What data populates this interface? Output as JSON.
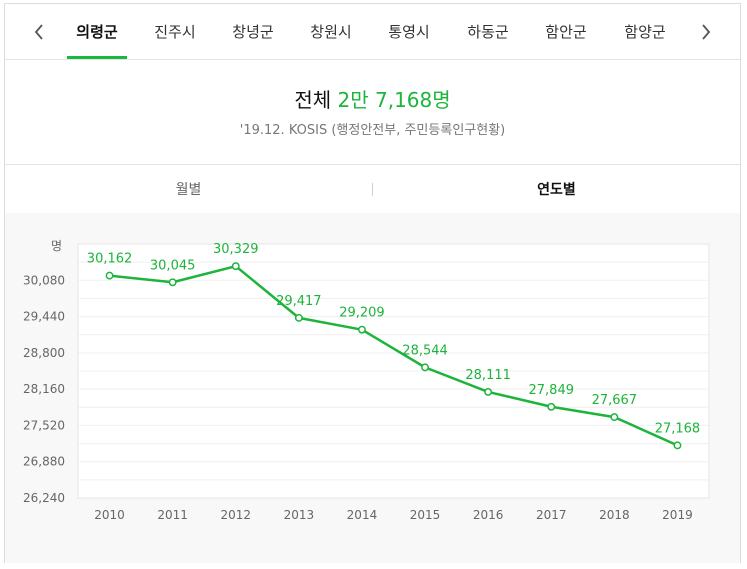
{
  "tabs": {
    "items": [
      "의령군",
      "진주시",
      "창녕군",
      "창원시",
      "통영시",
      "하동군",
      "함안군",
      "함양군"
    ],
    "active": "의령군"
  },
  "summary": {
    "label": "전체",
    "value": "2만 7,168명",
    "source": "'19.12. KOSIS (행정안전부, 주민등록인구현황)"
  },
  "period_toggle": {
    "monthly": "월별",
    "yearly": "연도별",
    "selected": "연도별"
  },
  "colors": {
    "accent": "#19b93d",
    "line": "#1db43c"
  },
  "icons": {
    "prev": "chevron-left-icon",
    "next": "chevron-right-icon"
  },
  "chart_data": {
    "type": "line",
    "unit": "명",
    "x": [
      "2010",
      "2011",
      "2012",
      "2013",
      "2014",
      "2015",
      "2016",
      "2017",
      "2018",
      "2019"
    ],
    "y_ticks": [
      26240,
      26880,
      27520,
      28160,
      28800,
      29440,
      30080
    ],
    "y_tick_labels": [
      "26,240",
      "26,880",
      "27,520",
      "28,160",
      "28,800",
      "29,440",
      "30,080"
    ],
    "ylim": [
      26240,
      30720
    ],
    "series": [
      {
        "values": [
          30162,
          30045,
          30329,
          29417,
          29209,
          28544,
          28111,
          27849,
          27667,
          27168
        ],
        "labels": [
          "30,162",
          "30,045",
          "30,329",
          "29,417",
          "29,209",
          "28,544",
          "28,111",
          "27,849",
          "27,667",
          "27,168"
        ]
      }
    ],
    "grid": true,
    "legend": "none"
  }
}
